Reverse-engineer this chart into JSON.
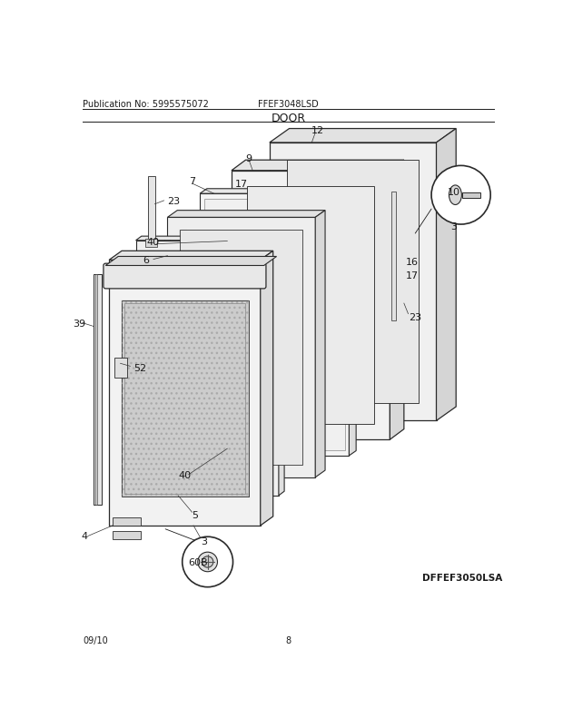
{
  "title": "DOOR",
  "pub_no": "Publication No: 5995575072",
  "model": "FFEF3048LSD",
  "diagram_id": "DFFEF3050LSA",
  "date": "09/10",
  "page": "8",
  "bg_color": "#ffffff",
  "line_color": "#1a1a1a",
  "face_color": "#f5f5f5",
  "shadow_color": "#e0e0e0",
  "edge_color": "#2a2a2a",
  "glass_color": "#d8d8d8",
  "inner_color": "#eeeeee"
}
